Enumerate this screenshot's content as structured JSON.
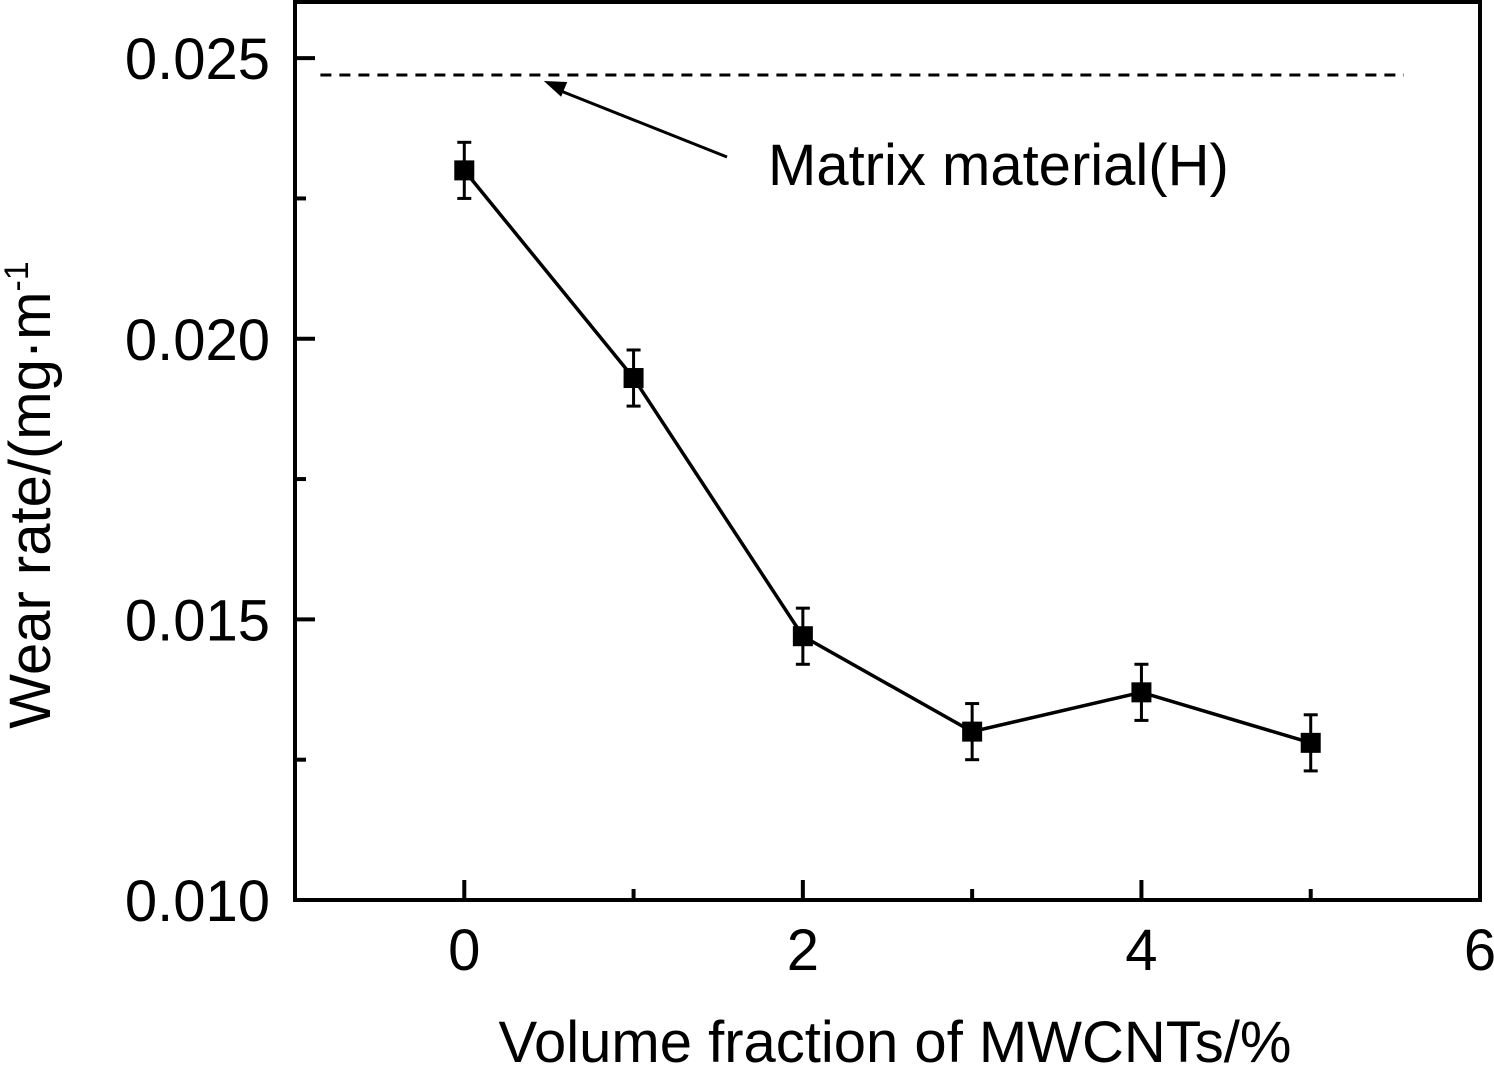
{
  "chart_data": {
    "type": "line",
    "title": "",
    "xlabel": "Volume fraction of MWCNTs/%",
    "ylabel": "Wear rate/(mg·m",
    "ylabel_sup": "-1",
    "xlim": [
      -1,
      6
    ],
    "ylim": [
      0.01,
      0.026
    ],
    "x_ticks": [
      0,
      2,
      4,
      6
    ],
    "x_tick_labels": [
      "0",
      "2",
      "4",
      "6"
    ],
    "x_minor_ticks": [
      1,
      3,
      5
    ],
    "y_ticks": [
      0.01,
      0.015,
      0.02,
      0.025
    ],
    "y_tick_labels": [
      "0.010",
      "0.015",
      "0.020",
      "0.025"
    ],
    "y_minor_ticks": [
      0.0125,
      0.0175,
      0.0225
    ],
    "grid": false,
    "marker": "square",
    "color": "#000000",
    "series": [
      {
        "x": [
          0,
          1,
          2,
          3,
          4,
          5
        ],
        "y": [
          0.023,
          0.0193,
          0.0147,
          0.013,
          0.0137,
          0.0128
        ],
        "error": [
          0.0005,
          0.0005,
          0.0005,
          0.0005,
          0.0005,
          0.0005
        ]
      }
    ],
    "reference_line": {
      "y": 0.0247,
      "x_range": [
        -0.85,
        5.55
      ],
      "style": "dashed"
    },
    "annotations": [
      {
        "text": "Matrix material(H)",
        "x": 0.9,
        "y": 0.0232,
        "arrow_to": {
          "x": 0.47,
          "y": 0.0247
        }
      }
    ]
  }
}
